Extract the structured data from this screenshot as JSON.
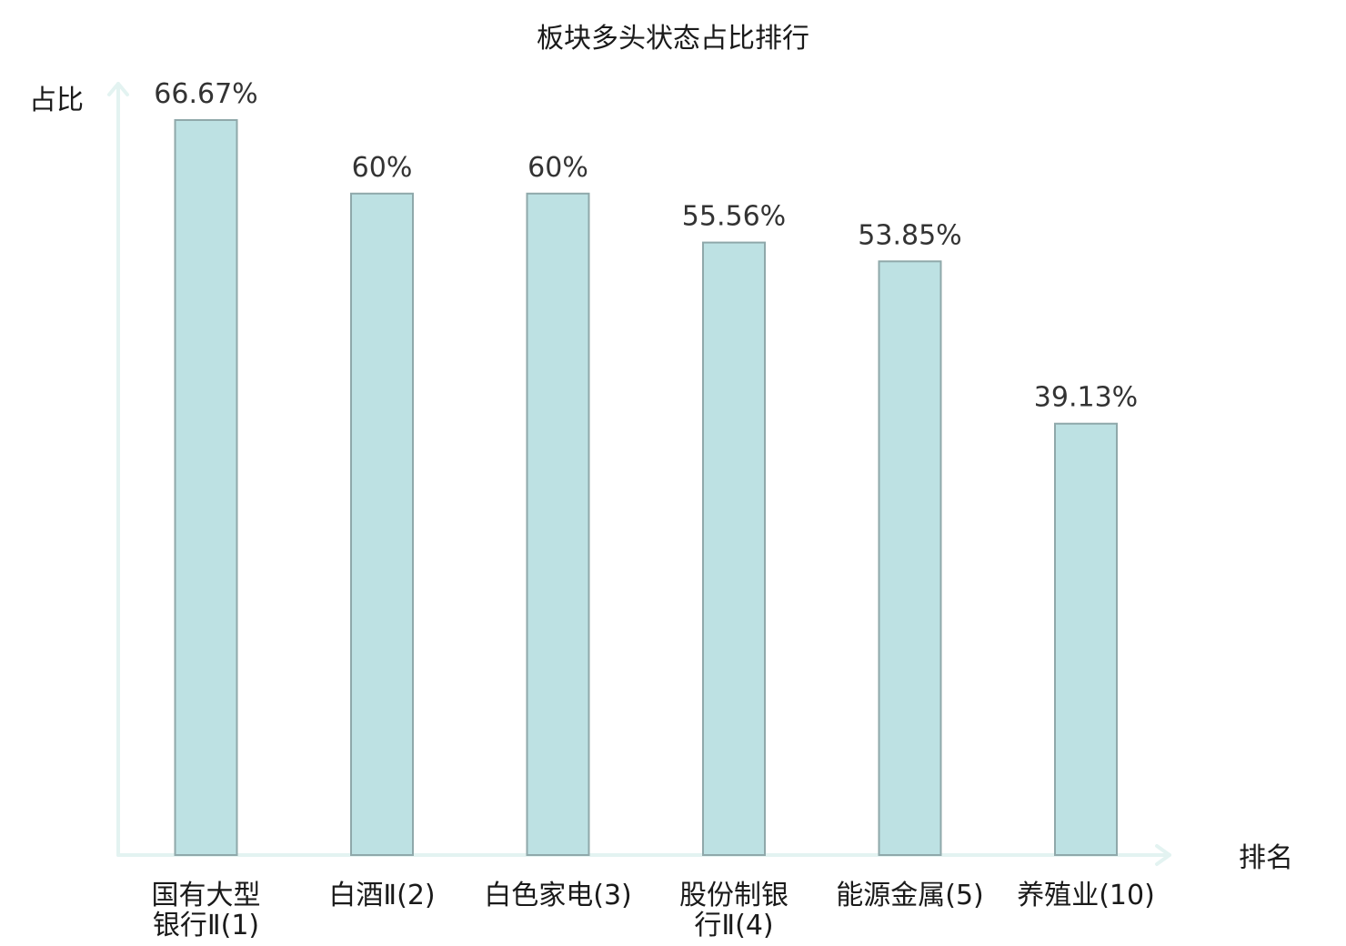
{
  "chart_data": {
    "type": "bar",
    "title": "板块多头状态占比排行",
    "ylabel": "占比",
    "xlabel": "排名",
    "ylim": [
      0,
      70
    ],
    "grid": false,
    "legend": "none",
    "categories": [
      "国有大型银行Ⅱ(1)",
      "白酒Ⅱ(2)",
      "白色家电(3)",
      "股份制银行Ⅱ(4)",
      "能源金属(5)",
      "养殖业(10)"
    ],
    "category_lines": [
      [
        "国有大型",
        "银行Ⅱ(1)"
      ],
      [
        "白酒Ⅱ(2)"
      ],
      [
        "白色家电(3)"
      ],
      [
        "股份制银",
        "行Ⅱ(4)"
      ],
      [
        "能源金属(5)"
      ],
      [
        "养殖业(10)"
      ]
    ],
    "values": [
      66.67,
      60,
      60,
      55.56,
      53.85,
      39.13
    ],
    "value_labels": [
      "66.67%",
      "60%",
      "60%",
      "55.56%",
      "53.85%",
      "39.13%"
    ],
    "highlight_index": 5
  },
  "colors": {
    "bar_fill": "#bde1e3",
    "bar_stroke": "#8fa8aa",
    "axis": "#e3f3f1",
    "highlight_label": "#e0141a",
    "label_text": "#1a1a1a",
    "value_text": "#333333"
  }
}
